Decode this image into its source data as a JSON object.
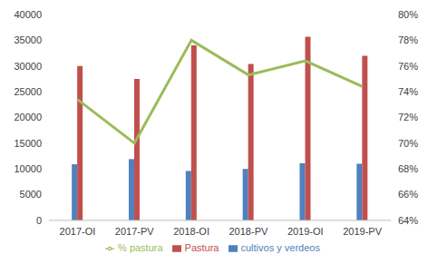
{
  "chart_data": {
    "type": "bar",
    "categories": [
      "2017-OI",
      "2017-PV",
      "2018-OI",
      "2018-PV",
      "2019-OI",
      "2019-PV"
    ],
    "series": [
      {
        "name": "cultivos y verdeos",
        "color": "#4f81bd",
        "values": [
          10900,
          11900,
          9600,
          10000,
          11100,
          11000
        ]
      },
      {
        "name": "Pastura",
        "color": "#c0504d",
        "values": [
          30000,
          27500,
          34000,
          30400,
          35700,
          32000
        ]
      },
      {
        "name": "% pastura",
        "color": "#9bbb59",
        "type": "line",
        "axis": "y2",
        "values": [
          73.4,
          70.0,
          78.0,
          75.3,
          76.4,
          74.4
        ]
      }
    ],
    "ylim": [
      0,
      40000
    ],
    "yticks": [
      0,
      5000,
      10000,
      15000,
      20000,
      25000,
      30000,
      35000,
      40000
    ],
    "y2lim": [
      64,
      80
    ],
    "y2ticks": [
      {
        "value": 64,
        "label": "64%"
      },
      {
        "value": 66,
        "label": "66%"
      },
      {
        "value": 68,
        "label": "68%"
      },
      {
        "value": 70,
        "label": "70%"
      },
      {
        "value": 72,
        "label": "72%"
      },
      {
        "value": 74,
        "label": "74%"
      },
      {
        "value": 76,
        "label": "76%"
      },
      {
        "value": 78,
        "label": "78%"
      },
      {
        "value": 80,
        "label": "80%"
      }
    ],
    "grid": false,
    "legend": "bottom"
  }
}
